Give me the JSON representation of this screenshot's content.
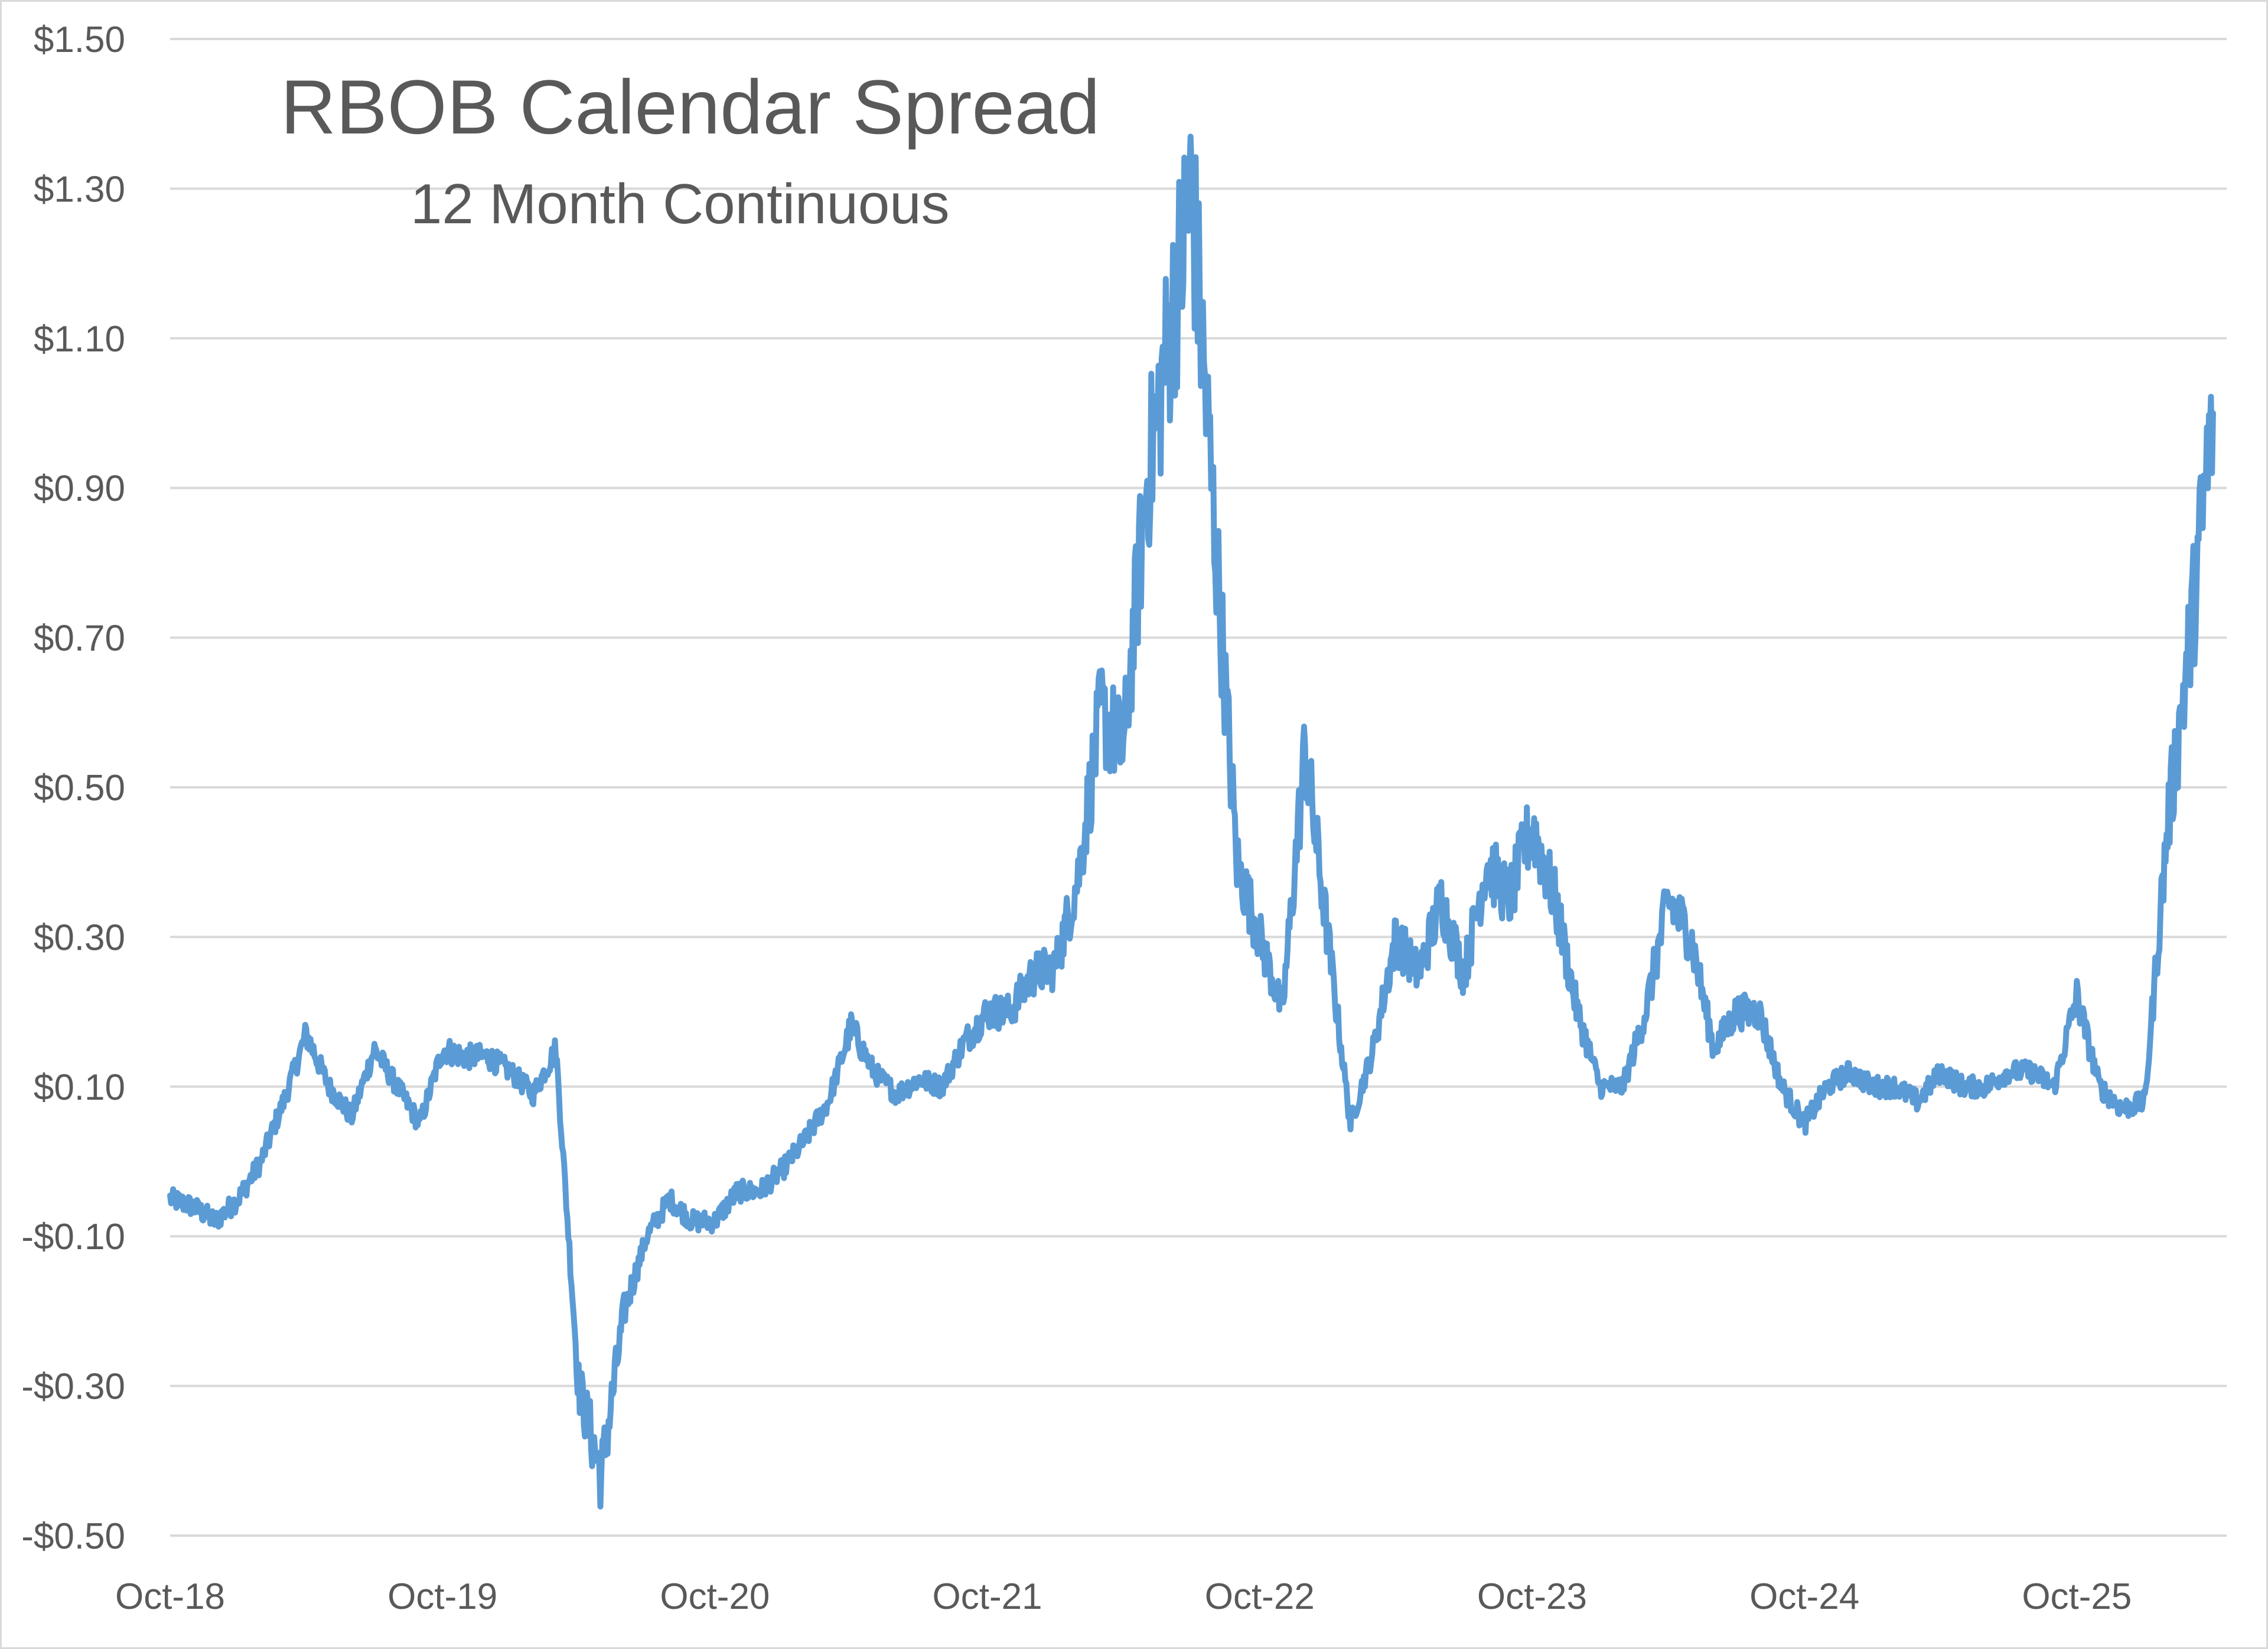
{
  "chart_data": {
    "type": "line",
    "title": "RBOB Calendar Spread",
    "subtitle": "12 Month Continuous",
    "xlabel": "",
    "ylabel": "",
    "ylim": [
      -0.5,
      1.5
    ],
    "y_ticks": [
      1.5,
      1.3,
      1.1,
      0.9,
      0.7,
      0.5,
      0.3,
      0.1,
      -0.1,
      -0.3,
      -0.5
    ],
    "y_tick_labels": [
      "$1.50",
      "$1.30",
      "$1.10",
      "$0.90",
      "$0.70",
      "$0.50",
      "$0.30",
      "$0.10",
      "-$0.10",
      "-$0.30",
      "-$0.50"
    ],
    "x_tick_labels": [
      "Oct-18",
      "Oct-19",
      "Oct-20",
      "Oct-21",
      "Oct-22",
      "Oct-23",
      "Oct-24",
      "Oct-25"
    ],
    "x_range": [
      "Oct-18",
      "Apr-26"
    ],
    "grid": true,
    "line_color": "#5b9bd5",
    "grid_color": "#d9d9d9",
    "series": [
      {
        "x": [
          "2018-10",
          "2018-11",
          "2018-12",
          "2019-01",
          "2019-02",
          "2019-03",
          "2019-04",
          "2019-05",
          "2019-06",
          "2019-07",
          "2019-08",
          "2019-09",
          "2019-10",
          "2019-11",
          "2019-12",
          "2020-01",
          "2020-02",
          "2020-03",
          "2020-04",
          "2020-05",
          "2020-06",
          "2020-07",
          "2020-08",
          "2020-09",
          "2020-10",
          "2020-11",
          "2020-12",
          "2021-01",
          "2021-02",
          "2021-03",
          "2021-04",
          "2021-05",
          "2021-06",
          "2021-07",
          "2021-08",
          "2021-09",
          "2021-10",
          "2021-11",
          "2021-12",
          "2022-01",
          "2022-02",
          "2022-03",
          "2022-04",
          "2022-05",
          "2022-06",
          "2022-07",
          "2022-08",
          "2022-09",
          "2022-10",
          "2022-11",
          "2022-12",
          "2023-01",
          "2023-02",
          "2023-03",
          "2023-04",
          "2023-05",
          "2023-06",
          "2023-07",
          "2023-08",
          "2023-09",
          "2023-10",
          "2023-11",
          "2023-12",
          "2024-01",
          "2024-02",
          "2024-03",
          "2024-04",
          "2024-05",
          "2024-06",
          "2024-07",
          "2024-08",
          "2024-09",
          "2024-10",
          "2024-11",
          "2024-12",
          "2025-01",
          "2025-02",
          "2025-03",
          "2025-04",
          "2025-05",
          "2025-06",
          "2025-07",
          "2025-08",
          "2025-09",
          "2025-10",
          "2025-11",
          "2025-12",
          "2026-01",
          "2026-02",
          "2026-03",
          "2026-04"
        ],
        "values": [
          -0.05,
          -0.06,
          -0.08,
          -0.05,
          0.0,
          0.08,
          0.17,
          0.1,
          0.06,
          0.15,
          0.1,
          0.05,
          0.15,
          0.14,
          0.14,
          0.12,
          0.09,
          0.15,
          -0.3,
          -0.42,
          -0.2,
          -0.1,
          -0.05,
          -0.08,
          -0.08,
          -0.04,
          -0.04,
          -0.01,
          0.03,
          0.08,
          0.18,
          0.12,
          0.09,
          0.11,
          0.1,
          0.16,
          0.2,
          0.2,
          0.25,
          0.26,
          0.38,
          0.6,
          0.55,
          0.9,
          1.1,
          1.3,
          0.85,
          0.4,
          0.3,
          0.2,
          0.55,
          0.3,
          0.05,
          0.15,
          0.3,
          0.25,
          0.35,
          0.25,
          0.4,
          0.35,
          0.45,
          0.35,
          0.2,
          0.1,
          0.1,
          0.2,
          0.35,
          0.3,
          0.15,
          0.2,
          0.2,
          0.1,
          0.05,
          0.1,
          0.12,
          0.1,
          0.1,
          0.08,
          0.12,
          0.1,
          0.1,
          0.12,
          0.12,
          0.1,
          0.22,
          0.1,
          0.07,
          0.08,
          0.45,
          0.7,
          1.0
        ]
      }
    ]
  }
}
